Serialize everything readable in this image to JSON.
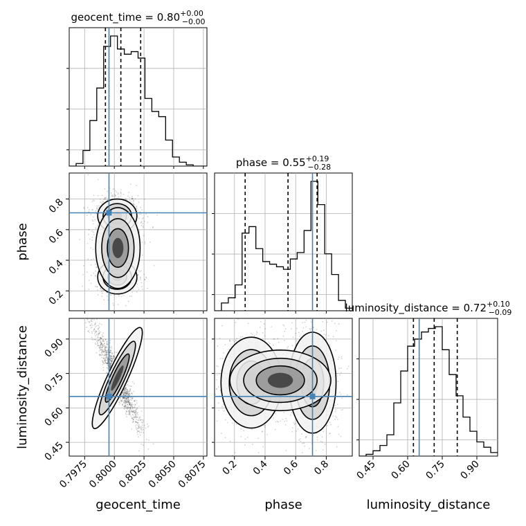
{
  "chart_data": {
    "type": "corner",
    "parameters": [
      {
        "name": "geocent_time",
        "title_value": "0.80",
        "title_plus": "+0.00",
        "title_minus": "−0.00",
        "truth": 0.79955,
        "quantiles": [
          0.79925,
          0.80055,
          0.80222
        ],
        "range": [
          0.7962,
          0.8078
        ]
      },
      {
        "name": "phase",
        "title_value": "0.55",
        "title_plus": "+0.19",
        "title_minus": "−0.28",
        "truth": 0.71,
        "quantiles": [
          0.27,
          0.55,
          0.74
        ],
        "range": [
          0.07,
          0.97
        ]
      },
      {
        "name": "luminosity_distance",
        "title_value": "0.72",
        "title_plus": "+0.10",
        "title_minus": "−0.09",
        "truth": 0.65,
        "quantiles": [
          0.625,
          0.715,
          0.815
        ],
        "range": [
          0.39,
          0.99
        ]
      }
    ],
    "ticks": [
      [
        "0.7975",
        "0.8000",
        "0.8025",
        "0.8050",
        "0.8075"
      ],
      [
        "0.2",
        "0.4",
        "0.6",
        "0.8"
      ],
      [
        "0.45",
        "0.60",
        "0.75",
        "0.90"
      ]
    ],
    "tick_values": [
      [
        0.7975,
        0.8,
        0.8025,
        0.805,
        0.8075
      ],
      [
        0.2,
        0.4,
        0.6,
        0.8
      ],
      [
        0.45,
        0.6,
        0.75,
        0.9
      ]
    ],
    "hist1d": [
      {
        "edges_start": 0.7962,
        "bin_width": 0.00058,
        "counts": [
          0,
          2,
          12,
          35,
          60,
          92,
          100,
          90,
          86,
          88,
          83,
          52,
          42,
          38,
          20,
          7,
          3,
          1,
          0,
          0
        ]
      },
      {
        "edges_start": 0.07,
        "bin_width": 0.045,
        "counts": [
          0,
          6,
          10,
          20,
          60,
          65,
          48,
          38,
          36,
          34,
          32,
          40,
          45,
          62,
          100,
          82,
          44,
          28,
          8,
          2
        ]
      },
      {
        "edges_start": 0.39,
        "bin_width": 0.03,
        "counts": [
          0,
          1,
          3,
          6,
          12,
          30,
          48,
          62,
          66,
          70,
          72,
          73,
          60,
          46,
          34,
          22,
          14,
          8,
          5,
          2
        ]
      }
    ],
    "colors": {
      "truth": "#4682b4",
      "hist": "#000000",
      "quantile": "#000000"
    }
  }
}
